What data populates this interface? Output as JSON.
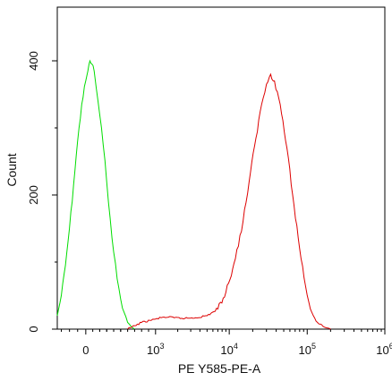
{
  "chart_data": {
    "type": "line",
    "xlabel": "PE Y585-PE-A",
    "ylabel": "Count",
    "x_scale": "biexponential",
    "xlim": [
      -350,
      1000000
    ],
    "ylim": [
      0,
      480
    ],
    "x_ticks": [
      {
        "value": 0,
        "base": "0",
        "exp": ""
      },
      {
        "value": 1000,
        "base": "10",
        "exp": "3"
      },
      {
        "value": 10000,
        "base": "10",
        "exp": "4"
      },
      {
        "value": 100000,
        "base": "10",
        "exp": "5"
      },
      {
        "value": 1000000,
        "base": "10",
        "exp": "6"
      }
    ],
    "y_ticks": [
      0,
      200,
      400
    ],
    "grid": false,
    "legend": "none",
    "series": [
      {
        "color": "#00dd00",
        "points": [
          [
            -350,
            20
          ],
          [
            -300,
            50
          ],
          [
            -250,
            95
          ],
          [
            -200,
            150
          ],
          [
            -150,
            215
          ],
          [
            -100,
            280
          ],
          [
            -50,
            335
          ],
          [
            0,
            370
          ],
          [
            30,
            385
          ],
          [
            60,
            400
          ],
          [
            90,
            395
          ],
          [
            120,
            385
          ],
          [
            150,
            360
          ],
          [
            200,
            320
          ],
          [
            250,
            275
          ],
          [
            300,
            220
          ],
          [
            350,
            165
          ],
          [
            400,
            115
          ],
          [
            450,
            75
          ],
          [
            500,
            45
          ],
          [
            550,
            25
          ],
          [
            600,
            10
          ],
          [
            650,
            4
          ],
          [
            700,
            0
          ]
        ]
      },
      {
        "color": "#dd0000",
        "points": [
          [
            600,
            0
          ],
          [
            700,
            5
          ],
          [
            800,
            10
          ],
          [
            1000,
            15
          ],
          [
            1300,
            18
          ],
          [
            1800,
            17
          ],
          [
            2500,
            16
          ],
          [
            3500,
            17
          ],
          [
            5000,
            20
          ],
          [
            7000,
            30
          ],
          [
            9000,
            55
          ],
          [
            12000,
            105
          ],
          [
            15000,
            160
          ],
          [
            18000,
            220
          ],
          [
            22000,
            285
          ],
          [
            26000,
            335
          ],
          [
            30000,
            365
          ],
          [
            34000,
            380
          ],
          [
            38000,
            370
          ],
          [
            45000,
            335
          ],
          [
            55000,
            270
          ],
          [
            65000,
            200
          ],
          [
            80000,
            120
          ],
          [
            95000,
            65
          ],
          [
            110000,
            30
          ],
          [
            130000,
            12
          ],
          [
            160000,
            4
          ],
          [
            200000,
            0
          ]
        ]
      }
    ]
  }
}
